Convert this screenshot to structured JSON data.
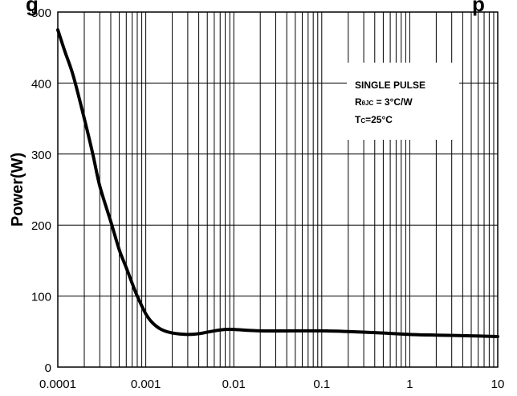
{
  "chart_data": {
    "type": "line",
    "title_fragment_left": "g",
    "title_fragment_right": "p",
    "ylabel": "Power(W)",
    "xlabel": "",
    "xscale": "log",
    "xlim": [
      0.0001,
      10
    ],
    "ylim": [
      0,
      500
    ],
    "grid": true,
    "x_tick_labels": [
      "0.0001",
      "0.001",
      "0.01",
      "0.1",
      "1",
      "10"
    ],
    "x_tick_values": [
      0.0001,
      0.001,
      0.01,
      0.1,
      1,
      10
    ],
    "y_tick_labels": [
      "0",
      "100",
      "200",
      "300",
      "400",
      "500"
    ],
    "y_tick_values": [
      0,
      100,
      200,
      300,
      400,
      500
    ],
    "annotation": {
      "line1": "SINGLE PULSE",
      "line2_main": "R",
      "line2_sub": "θJC",
      "line2_rest": " = 3°C/W",
      "line3_main": "T",
      "line3_sub": "C",
      "line3_rest": "=25°C"
    },
    "series": [
      {
        "x": [
          0.0001,
          0.00012,
          0.00015,
          0.0002,
          0.00025,
          0.0003,
          0.0004,
          0.0005,
          0.0006,
          0.0007,
          0.0008,
          0.001,
          0.0012,
          0.0015,
          0.002,
          0.003,
          0.004,
          0.006,
          0.008,
          0.01,
          0.02,
          0.05,
          0.1,
          0.2,
          0.5,
          1,
          2,
          5,
          10
        ],
        "values": [
          475,
          445,
          410,
          350,
          300,
          255,
          205,
          165,
          140,
          118,
          100,
          75,
          62,
          53,
          48,
          46,
          47,
          51,
          53,
          53,
          51,
          51,
          51,
          50,
          48,
          46,
          45,
          44,
          43
        ]
      }
    ]
  }
}
